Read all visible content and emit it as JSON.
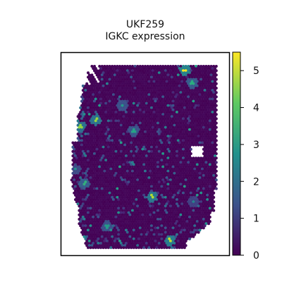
{
  "chart_data": {
    "type": "scatter",
    "title": "UKF259",
    "subtitle": "IGKC expression",
    "xlabel": "",
    "ylabel": "",
    "colorbar": {
      "colormap": "viridis",
      "range": [
        0,
        5.5
      ],
      "ticks": [
        "0",
        "1",
        "2",
        "3",
        "4",
        "5"
      ],
      "colors": [
        "#440154",
        "#3b528b",
        "#21918c",
        "#5ec962",
        "#fde725"
      ]
    },
    "grid": false,
    "background_level": 0.1,
    "hotspots": [
      {
        "value": 5.4,
        "region": "top-right"
      },
      {
        "value": 4.6,
        "region": "left-edge"
      },
      {
        "value": 4.9,
        "region": "lower-center"
      },
      {
        "value": 5.0,
        "region": "bottom-center"
      },
      {
        "value": 3.2,
        "region": "center"
      },
      {
        "value": 3.0,
        "region": "lower-left"
      },
      {
        "value": 2.8,
        "region": "left-edge"
      },
      {
        "value": 3.5,
        "region": "upper-right"
      }
    ]
  }
}
